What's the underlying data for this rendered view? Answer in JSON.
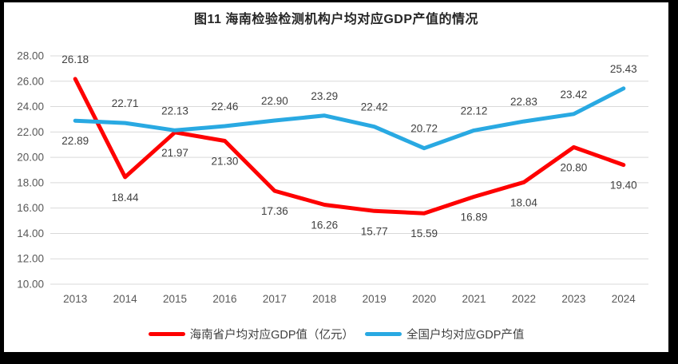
{
  "chart_data": {
    "type": "line",
    "title": "图11 海南检验检测机构户均对应GDP产值的情况",
    "categories": [
      "2013",
      "2014",
      "2015",
      "2016",
      "2017",
      "2018",
      "2019",
      "2020",
      "2021",
      "2022",
      "2023",
      "2024"
    ],
    "series": [
      {
        "name": "海南省户均对应GDP值（亿元）",
        "color": "#FE0000",
        "values": [
          26.18,
          18.44,
          21.97,
          21.3,
          17.36,
          16.26,
          15.77,
          15.59,
          16.89,
          18.04,
          20.8,
          19.4
        ],
        "label_placements": [
          "above",
          "below",
          "below",
          "below",
          "below",
          "below",
          "below",
          "below",
          "below",
          "below",
          "below",
          "below"
        ]
      },
      {
        "name": "全国户均对应GDP产值",
        "color": "#29A9E2",
        "values": [
          22.89,
          22.71,
          22.13,
          22.46,
          22.9,
          23.29,
          22.42,
          20.72,
          22.12,
          22.83,
          23.42,
          25.43
        ],
        "label_placements": [
          "below",
          "above",
          "above",
          "above",
          "above",
          "above",
          "above",
          "above",
          "above",
          "above",
          "above",
          "above"
        ]
      }
    ],
    "y_axis": {
      "min": 10,
      "max": 28,
      "step": 2,
      "tick_labels": [
        "10.00",
        "12.00",
        "14.00",
        "16.00",
        "18.00",
        "20.00",
        "22.00",
        "24.00",
        "26.00",
        "28.00"
      ]
    },
    "grid": true,
    "legend_position": "bottom",
    "data_label_decimals": 2,
    "colors": {
      "gridline": "#D9D9D9",
      "axis_text": "#595959",
      "data_label_text": "#404040",
      "title_text": "#262626",
      "frame": "#000000",
      "background": "#FFFFFF"
    }
  }
}
